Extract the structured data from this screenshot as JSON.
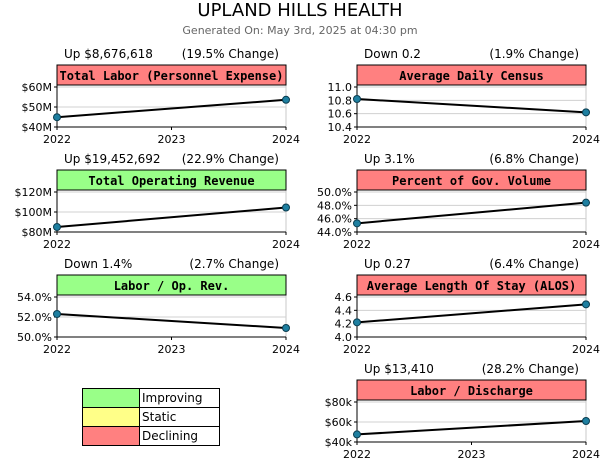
{
  "header": {
    "title": "UPLAND HILLS HEALTH",
    "subtitle": "Generated On: May 3rd, 2025 at 04:30 pm"
  },
  "colors": {
    "improving": "#99ff88",
    "static": "#ffff88",
    "declining": "#ff8080",
    "line": "#000000",
    "point": "#1e7fa0"
  },
  "legend": [
    {
      "label": "Improving",
      "status": "improving"
    },
    {
      "label": "Static",
      "status": "static"
    },
    {
      "label": "Declining",
      "status": "declining"
    }
  ],
  "chart_data": [
    {
      "type": "line",
      "title": "Total Labor (Personnel Expense)",
      "status": "declining",
      "change_left": "Up $8,676,618",
      "change_right": "(19.5% Change)",
      "categories": [
        "2022",
        "2023",
        "2024"
      ],
      "x": [
        2022,
        2024
      ],
      "values": [
        44.9,
        53.6
      ],
      "ylim": [
        40,
        60
      ],
      "yticks": [
        40,
        50,
        60
      ],
      "ytick_labels": [
        "$40M",
        "$50M",
        "$60M"
      ],
      "grid": true
    },
    {
      "type": "line",
      "title": "Average Daily Census",
      "status": "declining",
      "change_left": "Down 0.2",
      "change_right": "(1.9% Change)",
      "categories": [
        "2022",
        "2024"
      ],
      "x": [
        2022,
        2024
      ],
      "values": [
        10.82,
        10.62
      ],
      "ylim": [
        10.4,
        11.0
      ],
      "yticks": [
        10.4,
        10.6,
        10.8,
        11.0
      ],
      "ytick_labels": [
        "10.4",
        "10.6",
        "10.8",
        "11.0"
      ],
      "grid": true
    },
    {
      "type": "line",
      "title": "Total Operating Revenue",
      "status": "improving",
      "change_left": "Up $19,452,692",
      "change_right": "(22.9% Change)",
      "categories": [
        "2022",
        "2024"
      ],
      "x": [
        2022,
        2024
      ],
      "values": [
        85.0,
        104.5
      ],
      "ylim": [
        80,
        120
      ],
      "yticks": [
        80,
        100,
        120
      ],
      "ytick_labels": [
        "$80M",
        "$100M",
        "$120M"
      ],
      "grid": true
    },
    {
      "type": "line",
      "title": "Percent of Gov. Volume",
      "status": "declining",
      "change_left": "Up 3.1%",
      "change_right": "(6.8% Change)",
      "categories": [
        "2022",
        "2024"
      ],
      "x": [
        2022,
        2024
      ],
      "values": [
        45.3,
        48.4
      ],
      "ylim": [
        44,
        50
      ],
      "yticks": [
        44,
        46,
        48,
        50
      ],
      "ytick_labels": [
        "44.0%",
        "46.0%",
        "48.0%",
        "50.0%"
      ],
      "grid": true
    },
    {
      "type": "line",
      "title": "Labor / Op. Rev.",
      "status": "improving",
      "change_left": "Down 1.4%",
      "change_right": "(2.7% Change)",
      "categories": [
        "2022",
        "2023",
        "2024"
      ],
      "x": [
        2022,
        2024
      ],
      "values": [
        52.3,
        50.9
      ],
      "ylim": [
        50,
        54
      ],
      "yticks": [
        50,
        52,
        54
      ],
      "ytick_labels": [
        "50.0%",
        "52.0%",
        "54.0%"
      ],
      "grid": true
    },
    {
      "type": "line",
      "title": "Average Length Of Stay (ALOS)",
      "status": "declining",
      "change_left": "Up 0.27",
      "change_right": "(6.4% Change)",
      "categories": [
        "2022",
        "2024"
      ],
      "x": [
        2022,
        2024
      ],
      "values": [
        4.22,
        4.49
      ],
      "ylim": [
        4.0,
        4.6
      ],
      "yticks": [
        4.0,
        4.2,
        4.4,
        4.6
      ],
      "ytick_labels": [
        "4.0",
        "4.2",
        "4.4",
        "4.6"
      ],
      "grid": true
    },
    {
      "type": "line",
      "title": "Labor / Discharge",
      "status": "declining",
      "change_left": "Up $13,410",
      "change_right": "(28.2% Change)",
      "categories": [
        "2022",
        "2023",
        "2024"
      ],
      "x": [
        2022,
        2024
      ],
      "values": [
        47.6,
        61.0
      ],
      "ylim": [
        40,
        80
      ],
      "yticks": [
        40,
        60,
        80
      ],
      "ytick_labels": [
        "$40k",
        "$60k",
        "$80k"
      ],
      "grid": true
    }
  ]
}
